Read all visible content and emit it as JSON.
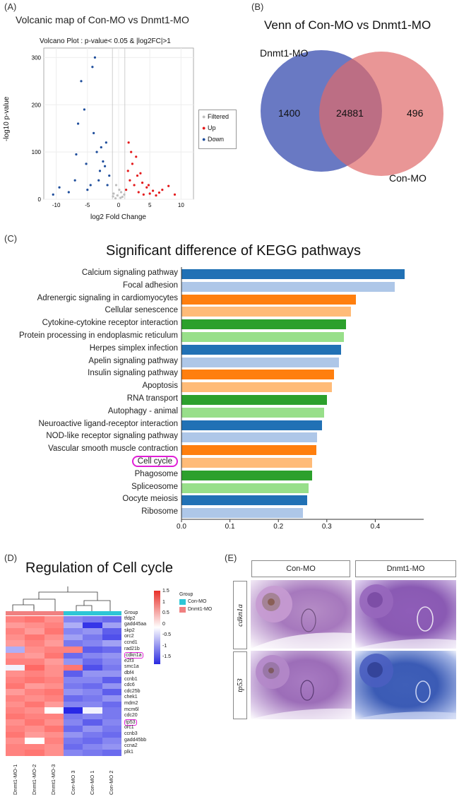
{
  "panels": {
    "a": {
      "letter": "(A)",
      "title": "Volcanic map of Con-MO vs Dnmt1-MO",
      "subtitle": "Volcano Plot : p-value< 0.05 & |log2FC|>1",
      "ylabel": "-log10 p-value",
      "xlabel": "log2 Fold Change",
      "yticks": [
        "0",
        "100",
        "200",
        "300"
      ],
      "xticks": [
        "-10",
        "-5",
        "0",
        "5",
        "10"
      ],
      "legend": [
        {
          "label": "Filtered",
          "color": "#bdbdbd"
        },
        {
          "label": "Up",
          "color": "#e41a1c"
        },
        {
          "label": "Down",
          "color": "#1f4e9c"
        }
      ]
    },
    "b": {
      "letter": "(B)",
      "title": "Venn of Con-MO vs Dnmt1-MO",
      "set_left": "Dnmt1-MO",
      "set_right": "Con-MO",
      "left_only": "1400",
      "overlap": "24881",
      "right_only": "496",
      "left_color": "#4f61b8",
      "right_color": "#e06a6a"
    },
    "c": {
      "letter": "(C)",
      "title": "Significant difference of KEGG pathways",
      "highlight": "Cell cycle"
    },
    "d": {
      "letter": "(D)",
      "title": "Regulation of Cell cycle",
      "group_label": "Group",
      "legend_title": "Group",
      "legend_groups": [
        {
          "label": "Con-MO",
          "color": "#2ec6d6"
        },
        {
          "label": "Dnmt1-MO",
          "color": "#f08080"
        }
      ],
      "scale_ticks": [
        "1.5",
        "1",
        "0.5",
        "0",
        "-0.5",
        "-1",
        "-1.5"
      ],
      "genes": [
        "tfdp2",
        "gadd45aa",
        "skp2",
        "orc2",
        "ccnd1",
        "rad21b",
        "cdkn1a",
        "e2f3",
        "smc1a",
        "dbf4",
        "ccnb1",
        "cdc6",
        "cdc25b",
        "chek1",
        "mdm2",
        "mcm6l",
        "cdc20",
        "tp53",
        "orc1",
        "ccnb3",
        "gadd45bb",
        "ccna2",
        "plk1"
      ],
      "highlighted_genes": [
        "cdkn1a",
        "tp53"
      ],
      "samples": [
        "Dnmt1-MO-1",
        "Dnmt1-MO-2",
        "Dnmt1-MO-3",
        "Con-MO 3",
        "Con-MO 1",
        "Con-MO 2"
      ],
      "sample_groups": [
        "Dnmt1-MO",
        "Dnmt1-MO",
        "Dnmt1-MO",
        "Con-MO",
        "Con-MO",
        "Con-MO"
      ],
      "values": [
        [
          1.0,
          1.1,
          0.9,
          -0.9,
          -1.0,
          -1.1
        ],
        [
          0.8,
          0.9,
          1.0,
          -0.6,
          -1.5,
          -0.7
        ],
        [
          1.0,
          0.8,
          1.1,
          -0.9,
          -0.8,
          -1.2
        ],
        [
          0.9,
          1.1,
          0.9,
          -0.7,
          -1.0,
          -1.3
        ],
        [
          0.8,
          1.0,
          0.8,
          -1.0,
          -0.9,
          -0.7
        ],
        [
          -0.6,
          0.9,
          1.0,
          1.0,
          -1.2,
          -1.1
        ],
        [
          0.9,
          0.8,
          1.1,
          -1.1,
          -0.9,
          -0.8
        ],
        [
          1.0,
          1.0,
          0.8,
          -0.8,
          -1.1,
          -0.9
        ],
        [
          -0.1,
          1.2,
          0.9,
          1.1,
          -1.3,
          -1.0
        ],
        [
          0.9,
          1.0,
          0.9,
          -1.2,
          -0.8,
          -0.8
        ],
        [
          1.0,
          1.1,
          1.0,
          -0.9,
          -0.9,
          -1.2
        ],
        [
          1.1,
          0.8,
          0.9,
          -1.0,
          -1.1,
          -0.8
        ],
        [
          0.8,
          1.0,
          1.1,
          -0.8,
          -0.9,
          -1.2
        ],
        [
          1.0,
          0.9,
          1.0,
          -1.1,
          -1.0,
          -0.8
        ],
        [
          0.9,
          1.1,
          0.8,
          -0.9,
          -0.9,
          -1.1
        ],
        [
          1.0,
          0.9,
          0.0,
          -1.6,
          -0.1,
          -1.0
        ],
        [
          1.1,
          1.0,
          1.0,
          -1.0,
          -0.9,
          -1.0
        ],
        [
          0.9,
          1.1,
          0.9,
          -0.9,
          -1.2,
          -0.9
        ],
        [
          1.0,
          0.9,
          1.1,
          -1.1,
          -0.8,
          -1.0
        ],
        [
          1.1,
          0.8,
          0.9,
          -0.8,
          -1.0,
          -1.1
        ],
        [
          0.9,
          0.0,
          1.0,
          -1.0,
          -1.1,
          -0.9
        ],
        [
          1.0,
          1.0,
          0.9,
          -1.1,
          -0.9,
          -0.8
        ],
        [
          1.0,
          1.1,
          0.9,
          -0.9,
          -1.0,
          -1.1
        ]
      ]
    },
    "e": {
      "letter": "(E)",
      "columns": [
        "Con-MO",
        "Dnmt1-MO"
      ],
      "rows": [
        "cdkn1a",
        "tp53"
      ]
    }
  },
  "chart_data": [
    {
      "type": "scatter",
      "title": "Volcano Plot : p-value< 0.05 & |log2FC|>1",
      "xlabel": "log2 Fold Change",
      "ylabel": "-log10 p-value",
      "xlim": [
        -12,
        12
      ],
      "ylim": [
        0,
        320
      ],
      "grid": true,
      "legend_position": "right",
      "series": [
        {
          "name": "Filtered",
          "points": [
            [
              -0.5,
              2
            ],
            [
              0.3,
              3
            ],
            [
              -0.2,
              8
            ],
            [
              0.6,
              5
            ],
            [
              -0.8,
              12
            ],
            [
              0.1,
              20
            ],
            [
              0.9,
              10
            ],
            [
              -0.4,
              30
            ],
            [
              0.4,
              15
            ],
            [
              -0.9,
              6
            ]
          ]
        },
        {
          "name": "Up",
          "points": [
            [
              1.2,
              20
            ],
            [
              1.5,
              60
            ],
            [
              1.8,
              40
            ],
            [
              2.0,
              100
            ],
            [
              2.2,
              75
            ],
            [
              2.5,
              30
            ],
            [
              3.0,
              50
            ],
            [
              3.2,
              15
            ],
            [
              3.8,
              35
            ],
            [
              4.0,
              10
            ],
            [
              4.5,
              25
            ],
            [
              5.0,
              12
            ],
            [
              5.5,
              18
            ],
            [
              6.0,
              8
            ],
            [
              7.0,
              20
            ],
            [
              8.0,
              28
            ],
            [
              9.0,
              10
            ],
            [
              2.8,
              90
            ],
            [
              1.6,
              120
            ],
            [
              3.5,
              55
            ],
            [
              6.5,
              14
            ],
            [
              4.8,
              30
            ]
          ]
        },
        {
          "name": "Down",
          "points": [
            [
              -1.5,
              50
            ],
            [
              -2.0,
              120
            ],
            [
              -2.5,
              80
            ],
            [
              -3.0,
              60
            ],
            [
              -3.5,
              100
            ],
            [
              -4.0,
              140
            ],
            [
              -4.5,
              30
            ],
            [
              -5.0,
              20
            ],
            [
              -5.5,
              190
            ],
            [
              -6.0,
              250
            ],
            [
              -6.5,
              160
            ],
            [
              -7.0,
              40
            ],
            [
              -3.8,
              300
            ],
            [
              -4.2,
              280
            ],
            [
              -2.8,
              110
            ],
            [
              -2.2,
              70
            ],
            [
              -8.0,
              15
            ],
            [
              -9.5,
              25
            ],
            [
              -10.5,
              10
            ],
            [
              -5.2,
              75
            ],
            [
              -6.8,
              95
            ],
            [
              -3.2,
              40
            ],
            [
              -1.8,
              30
            ]
          ]
        }
      ]
    },
    {
      "type": "bar",
      "title": "Significant difference of KEGG pathways",
      "orientation": "horizontal",
      "categories": [
        "Calcium signaling pathway",
        "Focal adhesion",
        "Adrenergic signaling in cardiomyocytes",
        "Cellular senescence",
        "Cytokine-cytokine receptor interaction",
        "Protein processing in endoplasmic reticulum",
        "Herpes simplex infection",
        "Apelin signaling pathway",
        "Insulin signaling pathway",
        "Apoptosis",
        "RNA transport",
        "Autophagy - animal",
        "Neuroactive ligand-receptor interaction",
        "NOD-like receptor signaling pathway",
        "Vascular smooth muscle contraction",
        "Cell cycle",
        "Phagosome",
        "Spliceosome",
        "Oocyte meiosis",
        "Ribosome"
      ],
      "values": [
        0.46,
        0.44,
        0.36,
        0.35,
        0.34,
        0.335,
        0.33,
        0.325,
        0.315,
        0.31,
        0.3,
        0.295,
        0.29,
        0.28,
        0.278,
        0.27,
        0.27,
        0.262,
        0.26,
        0.25
      ],
      "colors": [
        "#2171b5",
        "#aec7e8",
        "#ff7f0e",
        "#ffbb78",
        "#2ca02c",
        "#98df8a",
        "#2171b5",
        "#aec7e8",
        "#ff7f0e",
        "#ffbb78",
        "#2ca02c",
        "#98df8a",
        "#2171b5",
        "#aec7e8",
        "#ff7f0e",
        "#ffbb78",
        "#2ca02c",
        "#98df8a",
        "#2171b5",
        "#aec7e8"
      ],
      "xticks": [
        "0.0",
        "0.1",
        "0.2",
        "0.3",
        "0.4"
      ],
      "xlim": [
        0,
        0.48
      ]
    }
  ]
}
